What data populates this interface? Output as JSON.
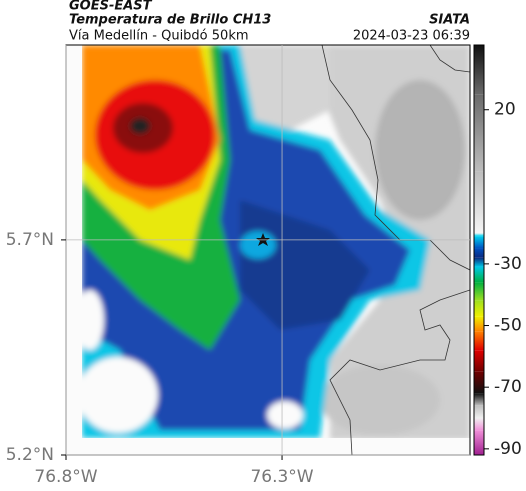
{
  "header": {
    "source": "GOES-EAST",
    "title": "Temperatura de Brillo CH13",
    "agency": "SIATA",
    "subtitle": "Vía Medellín - Quibdó 50km",
    "timestamp": "2024-03-23 06:39"
  },
  "map": {
    "xlim": [
      -76.8,
      -75.865
    ],
    "ylim": [
      5.2,
      6.153
    ],
    "xticks": [
      {
        "value": -76.8,
        "label": "76.8°W"
      },
      {
        "value": -76.3,
        "label": "76.3°W"
      }
    ],
    "yticks": [
      {
        "value": 5.2,
        "label": "5.2°N"
      },
      {
        "value": 5.7,
        "label": "5.7°N"
      }
    ],
    "grid": true
  },
  "colorbar": {
    "clim": [
      -92,
      41
    ],
    "ticks": [
      20,
      -30,
      -50,
      -70,
      -90
    ],
    "colormap": [
      {
        "value": 41,
        "color": "#101010"
      },
      {
        "value": 25,
        "color": "#6a6a6a"
      },
      {
        "value": 0,
        "color": "#bdbdbd"
      },
      {
        "value": -20,
        "color": "#f5f5f5"
      },
      {
        "value": -21,
        "color": "#00d2f0"
      },
      {
        "value": -25,
        "color": "#0050c0"
      },
      {
        "value": -28,
        "color": "#0a2a80"
      },
      {
        "value": -31,
        "color": "#00c8e6"
      },
      {
        "value": -36,
        "color": "#00b040"
      },
      {
        "value": -42,
        "color": "#a0e020"
      },
      {
        "value": -47,
        "color": "#f0f000"
      },
      {
        "value": -52,
        "color": "#ff8000"
      },
      {
        "value": -58,
        "color": "#e00000"
      },
      {
        "value": -65,
        "color": "#700000"
      },
      {
        "value": -72,
        "color": "#101010"
      },
      {
        "value": -76,
        "color": "#c0c0c0"
      },
      {
        "value": -80,
        "color": "#f0f0f0"
      },
      {
        "value": -84,
        "color": "#f090d8"
      },
      {
        "value": -92,
        "color": "#a02090"
      }
    ]
  }
}
